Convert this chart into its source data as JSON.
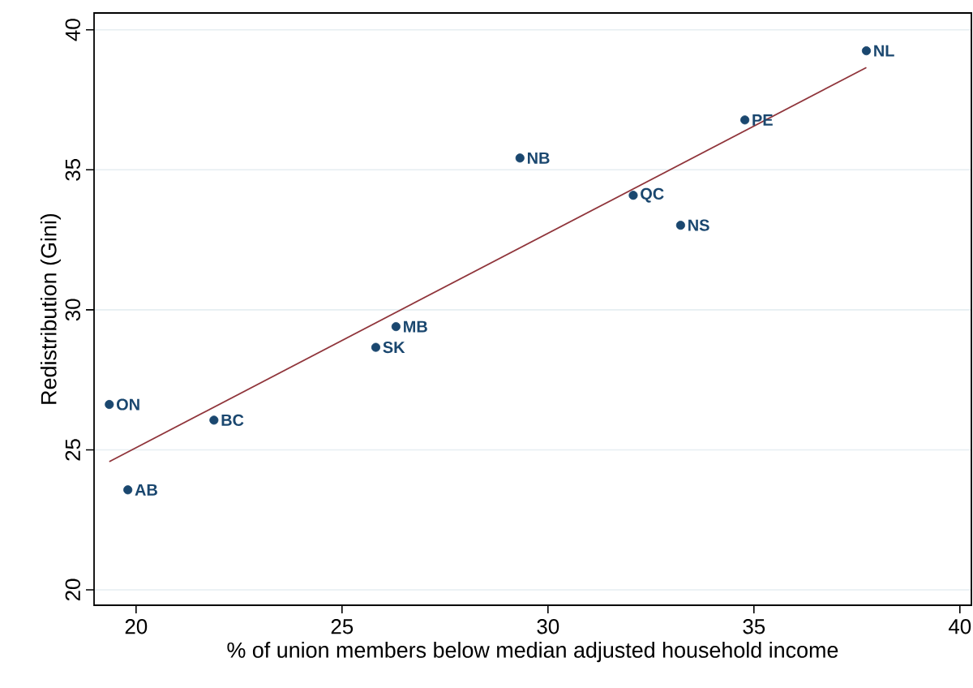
{
  "chart_data": {
    "type": "scatter",
    "xlabel": "% of union members below median adjusted household income",
    "ylabel": "Redistribution (Gini)",
    "series": [
      {
        "color": "#1a476f",
        "marker": "circle",
        "x": [
          37.73,
          34.78,
          29.32,
          32.07,
          33.22,
          26.31,
          25.82,
          19.35,
          21.89,
          19.8
        ],
        "values": [
          39.25,
          36.78,
          35.42,
          34.09,
          33.02,
          29.4,
          28.66,
          26.62,
          26.06,
          23.57
        ]
      },
      {
        "type": "line",
        "color": "#90353b",
        "x": [
          19.35,
          37.73
        ],
        "values": [
          24.58,
          38.65
        ]
      }
    ],
    "annotations": [
      {
        "text": "NL",
        "x": 37.73,
        "y": 39.25
      },
      {
        "text": "PE",
        "x": 34.78,
        "y": 36.78
      },
      {
        "text": "NB",
        "x": 29.32,
        "y": 35.42
      },
      {
        "text": "QC",
        "x": 32.07,
        "y": 34.09
      },
      {
        "text": "NS",
        "x": 33.22,
        "y": 33.02
      },
      {
        "text": "MB",
        "x": 26.31,
        "y": 29.4
      },
      {
        "text": "SK",
        "x": 25.82,
        "y": 28.66
      },
      {
        "text": "ON",
        "x": 19.35,
        "y": 26.62
      },
      {
        "text": "BC",
        "x": 21.89,
        "y": 26.06
      },
      {
        "text": "AB",
        "x": 19.8,
        "y": 23.57
      }
    ],
    "xlim": [
      18.98,
      40.28
    ],
    "ylim": [
      19.45,
      40.6
    ],
    "xticks": [
      20,
      25,
      30,
      35,
      40
    ],
    "yticks": [
      20,
      25,
      30,
      35,
      40
    ],
    "grid": "y"
  }
}
